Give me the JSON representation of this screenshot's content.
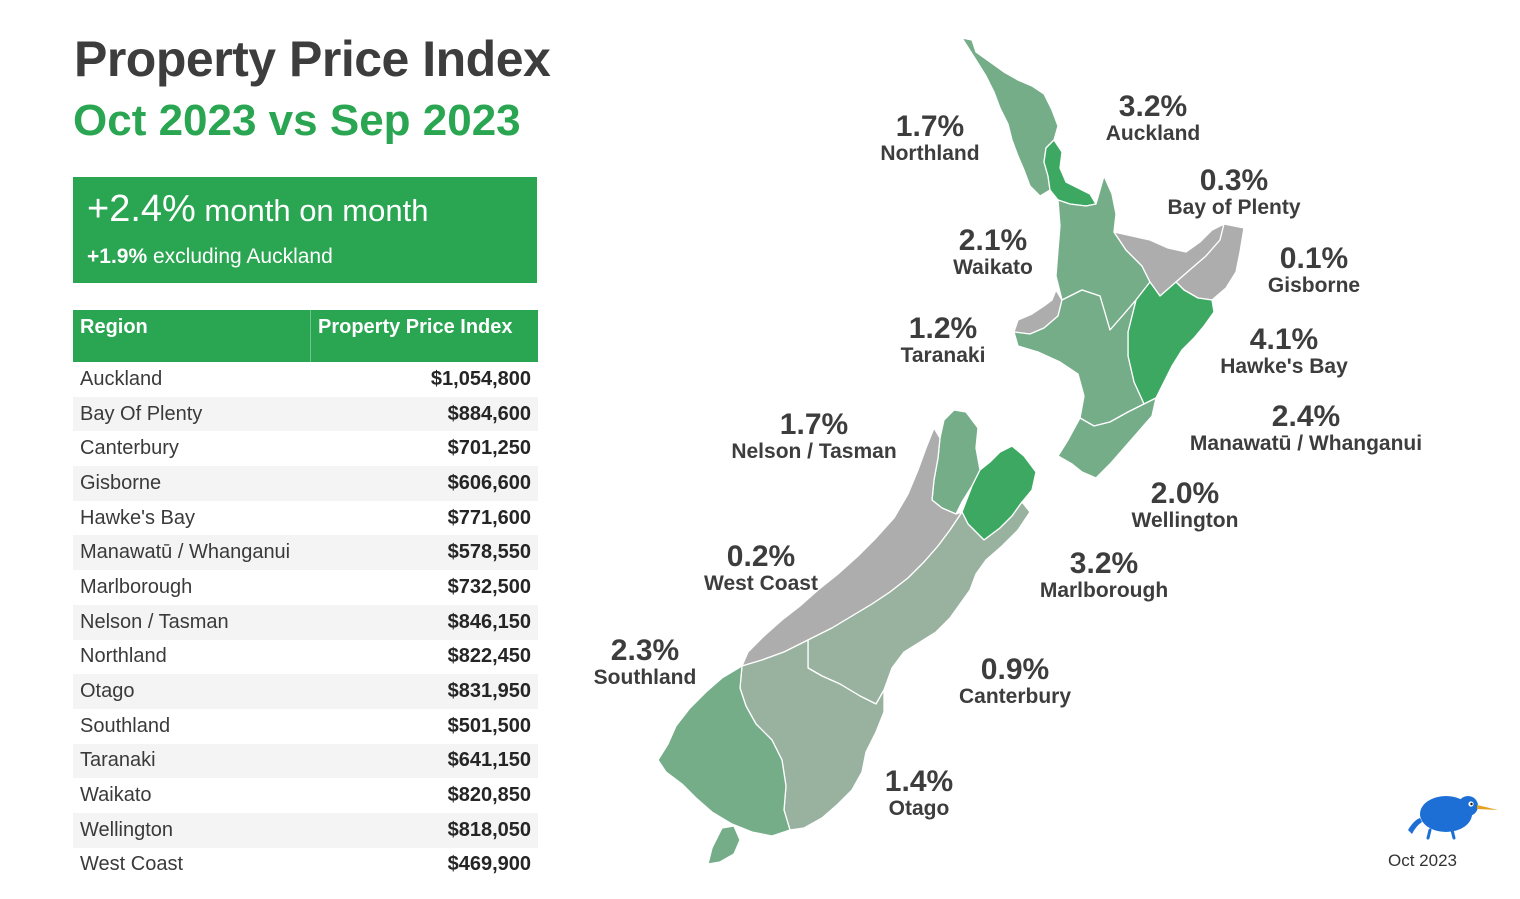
{
  "header": {
    "title": "Property Price Index",
    "subtitle": "Oct 2023 vs Sep 2023"
  },
  "headline": {
    "change": "+2.4%",
    "change_suffix": " month on month",
    "ex_change": "+1.9%",
    "ex_suffix": " excluding Auckland"
  },
  "table": {
    "headers": [
      "Region",
      "Property Price Index"
    ],
    "rows": [
      {
        "region": "Auckland",
        "value": "$1,054,800"
      },
      {
        "region": "Bay Of Plenty",
        "value": "$884,600"
      },
      {
        "region": "Canterbury",
        "value": "$701,250"
      },
      {
        "region": "Gisborne",
        "value": "$606,600"
      },
      {
        "region": "Hawke's Bay",
        "value": "$771,600"
      },
      {
        "region": "Manawatū / Whanganui",
        "value": "$578,550"
      },
      {
        "region": "Marlborough",
        "value": "$732,500"
      },
      {
        "region": "Nelson / Tasman",
        "value": "$846,150"
      },
      {
        "region": "Northland",
        "value": "$822,450"
      },
      {
        "region": "Otago",
        "value": "$831,950"
      },
      {
        "region": "Southland",
        "value": "$501,500"
      },
      {
        "region": "Taranaki",
        "value": "$641,150"
      },
      {
        "region": "Waikato",
        "value": "$820,850"
      },
      {
        "region": "Wellington",
        "value": "$818,050"
      },
      {
        "region": "West Coast",
        "value": "$469,900"
      }
    ]
  },
  "map": {
    "colors": {
      "high": "#3da862",
      "mid": "#75ad89",
      "low": "#98b29f",
      "flat": "#adadad"
    },
    "labels": [
      {
        "id": "northland",
        "pct": "1.7%",
        "name": "Northland"
      },
      {
        "id": "auckland",
        "pct": "3.2%",
        "name": "Auckland"
      },
      {
        "id": "bay-of-plenty",
        "pct": "0.3%",
        "name": "Bay of Plenty"
      },
      {
        "id": "waikato",
        "pct": "2.1%",
        "name": "Waikato"
      },
      {
        "id": "gisborne",
        "pct": "0.1%",
        "name": "Gisborne"
      },
      {
        "id": "taranaki",
        "pct": "1.2%",
        "name": "Taranaki"
      },
      {
        "id": "hawkes-bay",
        "pct": "4.1%",
        "name": "Hawke's Bay"
      },
      {
        "id": "manawatu-whanganui",
        "pct": "2.4%",
        "name": "Manawatū / Whanganui"
      },
      {
        "id": "nelson-tasman",
        "pct": "1.7%",
        "name": "Nelson / Tasman"
      },
      {
        "id": "wellington",
        "pct": "2.0%",
        "name": "Wellington"
      },
      {
        "id": "west-coast",
        "pct": "0.2%",
        "name": "West Coast"
      },
      {
        "id": "marlborough",
        "pct": "3.2%",
        "name": "Marlborough"
      },
      {
        "id": "southland",
        "pct": "2.3%",
        "name": "Southland"
      },
      {
        "id": "canterbury",
        "pct": "0.9%",
        "name": "Canterbury"
      },
      {
        "id": "otago",
        "pct": "1.4%",
        "name": "Otago"
      }
    ]
  },
  "footer": {
    "date": "Oct 2023",
    "logo": "kiwi-bird-logo"
  }
}
